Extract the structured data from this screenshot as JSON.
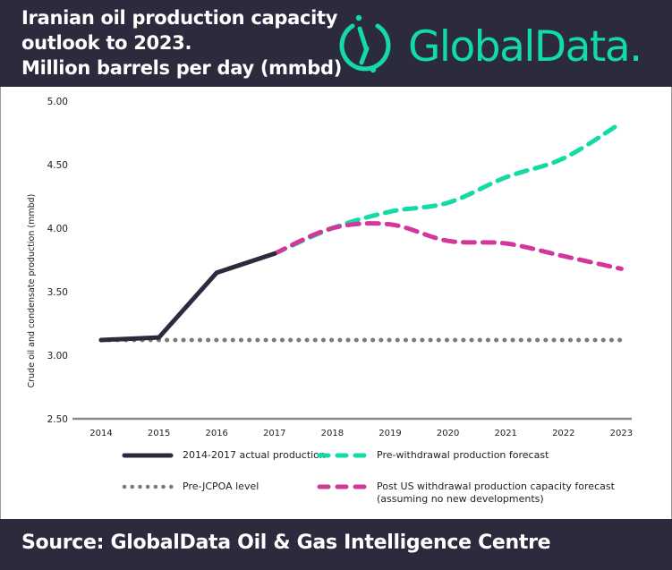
{
  "header": {
    "title_lines": [
      "Iranian oil production capacity",
      "outlook to 2023.",
      "Million barrels per day (mmbd)"
    ],
    "logo_text": "GlobalData."
  },
  "footer": {
    "source": "Source: GlobalData Oil & Gas Intelligence Centre"
  },
  "colors": {
    "header_bg": "#2c2a3d",
    "actual": "#2c2a3d",
    "pre_withdrawal": "#12dba3",
    "post_withdrawal": "#d3379b",
    "pre_jcpoa": "#7a7a7a",
    "brand": "#12dba3"
  },
  "chart_data": {
    "type": "line",
    "title": "Iranian oil production capacity outlook to 2023. Million barrels per day (mmbd)",
    "xlabel": "",
    "ylabel": "Crude oil and condensate production (mmbd)",
    "ylim": [
      2.5,
      5.0
    ],
    "yticks": [
      "2.50",
      "3.00",
      "3.50",
      "4.00",
      "4.50",
      "5.00"
    ],
    "ytick_values": [
      2.5,
      3.0,
      3.5,
      4.0,
      4.5,
      5.0
    ],
    "categories": [
      "2014",
      "2015",
      "2016",
      "2017",
      "2018",
      "2019",
      "2020",
      "2021",
      "2022",
      "2023"
    ],
    "grid": false,
    "legend_position": "bottom",
    "series": [
      {
        "name": "2014-2017 actual production",
        "style": "solid",
        "x": [
          "2014",
          "2015",
          "2016",
          "2017"
        ],
        "values": [
          3.12,
          3.14,
          3.65,
          3.8
        ]
      },
      {
        "name": "Pre-withdrawal production forecast",
        "style": "dashed",
        "x": [
          "2017",
          "2018",
          "2019",
          "2020",
          "2021",
          "2022",
          "2023"
        ],
        "values": [
          3.8,
          4.0,
          4.13,
          4.2,
          4.4,
          4.55,
          4.83
        ]
      },
      {
        "name": "Pre-JCPOA level",
        "style": "dotted",
        "x": [
          "2014",
          "2015",
          "2016",
          "2017",
          "2018",
          "2019",
          "2020",
          "2021",
          "2022",
          "2023"
        ],
        "values": [
          3.12,
          3.12,
          3.12,
          3.12,
          3.12,
          3.12,
          3.12,
          3.12,
          3.12,
          3.12
        ]
      },
      {
        "name": "Post US withdrawal production capacity forecast (assuming no new developments)",
        "style": "dashed",
        "x": [
          "2017",
          "2018",
          "2019",
          "2020",
          "2021",
          "2022",
          "2023"
        ],
        "values": [
          3.8,
          4.0,
          4.03,
          3.9,
          3.88,
          3.78,
          3.68
        ]
      }
    ]
  },
  "legend": {
    "items": [
      {
        "label_lines": [
          "2014-2017 actual production"
        ]
      },
      {
        "label_lines": [
          "Pre-withdrawal production forecast"
        ]
      },
      {
        "label_lines": [
          "Pre-JCPOA level"
        ]
      },
      {
        "label_lines": [
          "Post US withdrawal production capacity forecast",
          "(assuming no new developments)"
        ]
      }
    ]
  }
}
